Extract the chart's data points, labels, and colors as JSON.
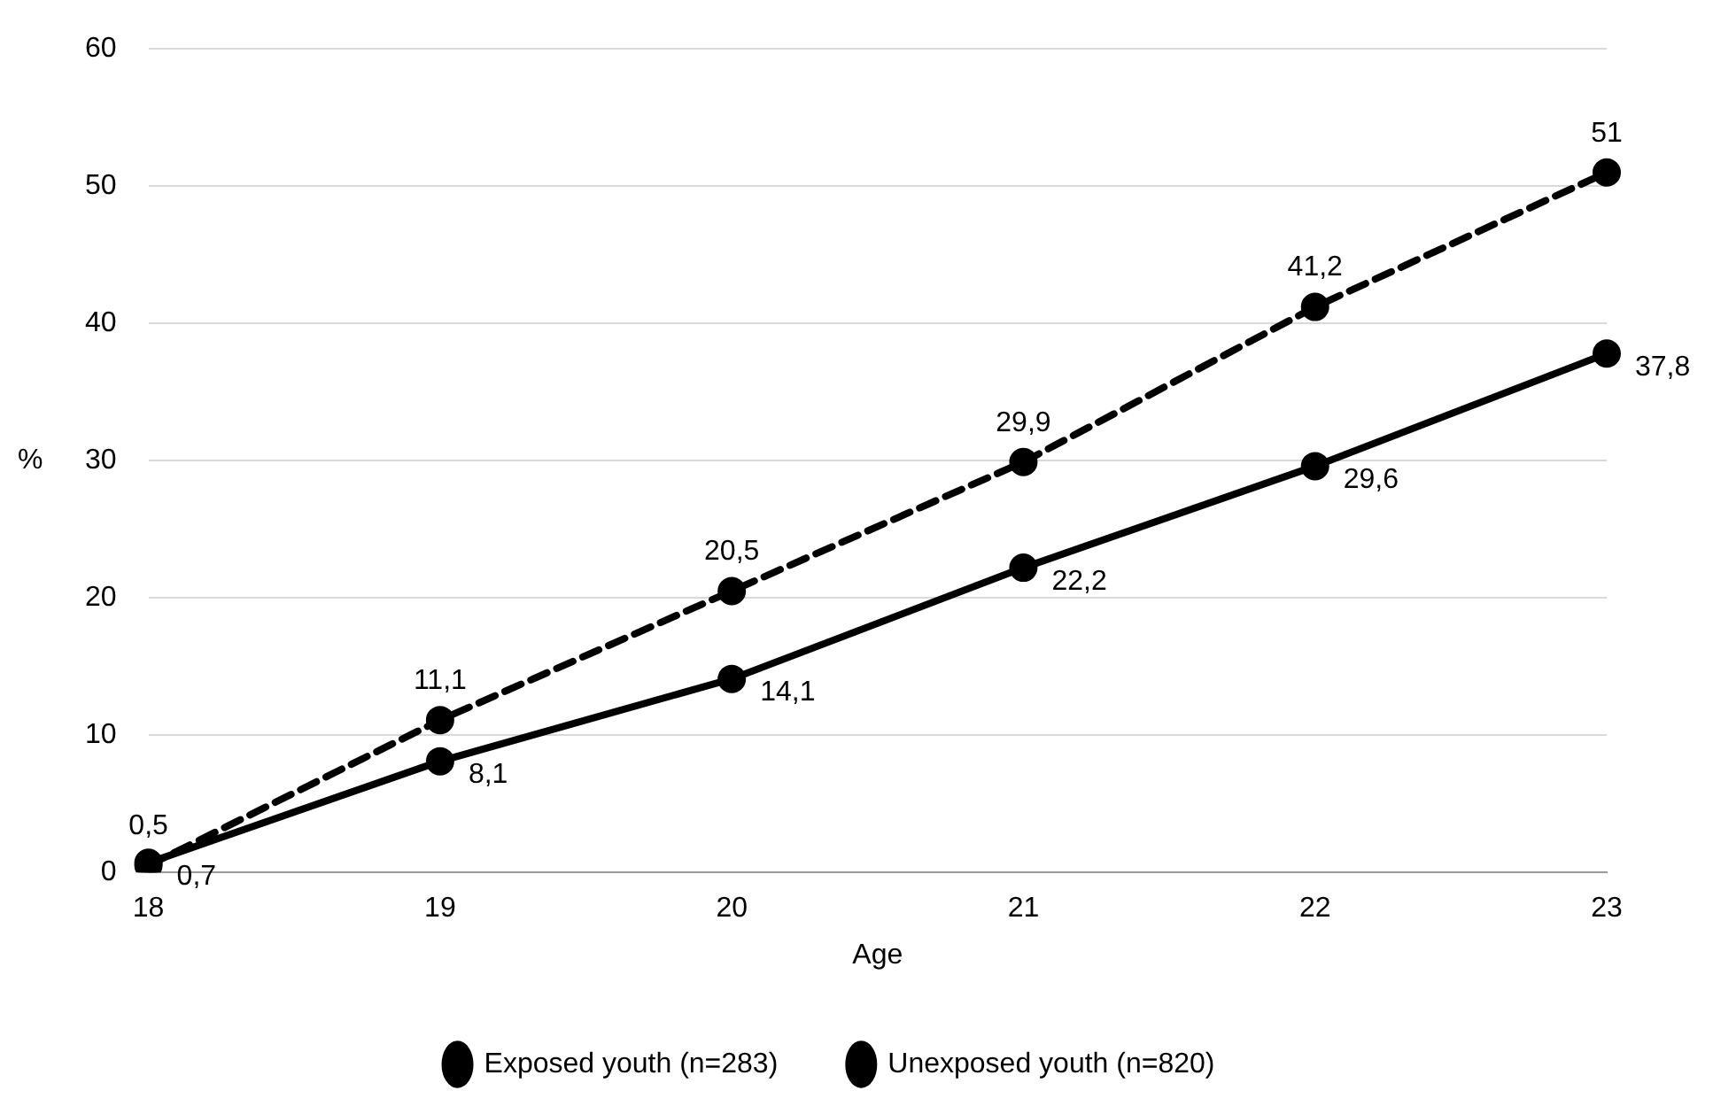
{
  "chart_data": {
    "type": "line",
    "xlabel": "Age",
    "ylabel": "%",
    "categories": [
      "18",
      "19",
      "20",
      "21",
      "22",
      "23"
    ],
    "series": [
      {
        "name": "Exposed youth (n=283)",
        "color": "#000000",
        "line_style": "solid",
        "values": [
          0.7,
          8.1,
          14.1,
          22.2,
          29.6,
          37.8
        ],
        "value_labels": [
          "0,7",
          "8,1",
          "14,1",
          "22,2",
          "29,6",
          "37,8"
        ]
      },
      {
        "name": "Unexposed youth (n=820)",
        "color": "#000000",
        "line_style": "dashed",
        "values": [
          0.5,
          11.1,
          20.5,
          29.9,
          41.2,
          51
        ],
        "value_labels": [
          "0,5",
          "11,1",
          "20,5",
          "29,9",
          "41,2",
          "51"
        ]
      }
    ],
    "ylim": [
      0,
      60
    ],
    "yticks": [
      0,
      10,
      20,
      30,
      40,
      50,
      60
    ],
    "grid": "y",
    "legend": "bottom",
    "marker": "circle"
  }
}
